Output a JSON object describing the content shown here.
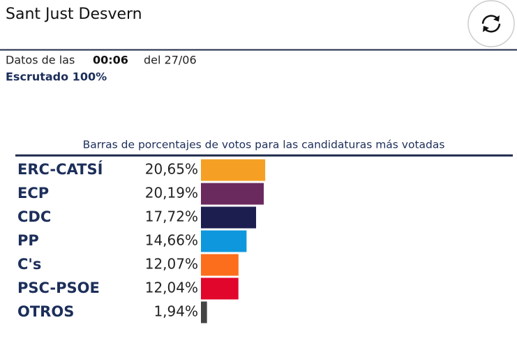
{
  "header": {
    "title": "Sant Just Desvern",
    "time_prefix": "Datos de las",
    "time": "00:06",
    "date": "del 27/06",
    "status": "Escrutado 100%"
  },
  "chart_data": {
    "type": "bar",
    "orientation": "horizontal",
    "title": "Barras de porcentajes de votos para las candidaturas más votadas",
    "categories": [
      "ERC-CATSÍ",
      "ECP",
      "CDC",
      "PP",
      "C's",
      "PSC-PSOE",
      "OTROS"
    ],
    "values": [
      20.65,
      20.19,
      17.72,
      14.66,
      12.07,
      12.04,
      1.94
    ],
    "value_labels": [
      "20,65%",
      "20,19%",
      "17,72%",
      "14,66%",
      "12,07%",
      "12,04%",
      "1,94%"
    ],
    "colors": [
      "#f5a024",
      "#6b2a5e",
      "#1c1e4f",
      "#0e97dc",
      "#fc6e1b",
      "#e1062b",
      "#444444"
    ]
  }
}
